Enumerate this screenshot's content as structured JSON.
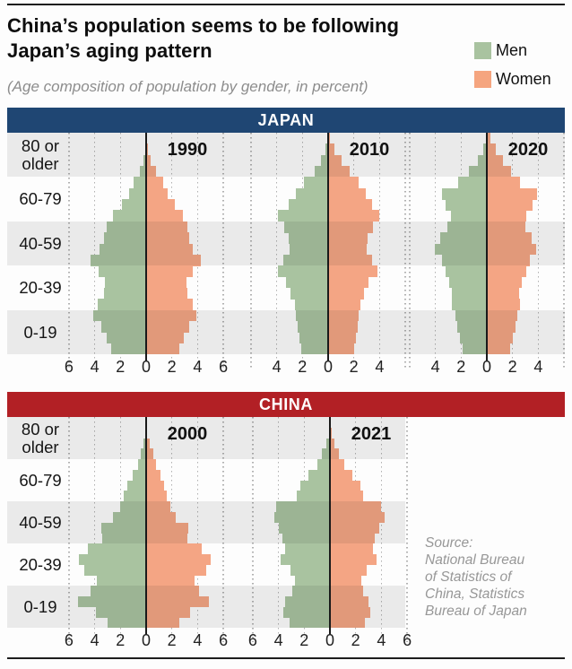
{
  "title": {
    "line1": "China’s population seems to be following",
    "line2": "Japan’s aging pattern"
  },
  "subtitle": "(Age composition of population by gender, in percent)",
  "legend": {
    "men": {
      "label": "Men",
      "color": "#a9c3a0"
    },
    "women": {
      "label": "Women",
      "color": "#f5a57f"
    }
  },
  "source_lines": [
    "Source:",
    "National Bureau",
    "of Statistics of",
    "China, Statistics",
    "Bureau of Japan"
  ],
  "colors": {
    "men_bar": "#a9c3a0",
    "women_bar": "#f4a584",
    "band_stripe": "#ececec",
    "gridline": "#b0b0b0",
    "zero_axis": "#1b1b1b",
    "japan_header": "#1f4673",
    "china_header": "#b22025"
  },
  "chart_data": {
    "type": "bar",
    "subtype": "population-pyramid",
    "unit": "percent of total population per gender, 5-year age groups",
    "age_band_labels": [
      "80 or older",
      "60-79",
      "40-59",
      "20-39",
      "0-19"
    ],
    "age_groups_order": "oldest_to_youngest",
    "age_groups": [
      "95+",
      "90-94",
      "85-89",
      "80-84",
      "75-79",
      "70-74",
      "65-69",
      "60-64",
      "55-59",
      "50-54",
      "45-49",
      "40-44",
      "35-39",
      "30-34",
      "25-29",
      "20-24",
      "15-19",
      "10-14",
      "5-9",
      "0-4"
    ],
    "xlim_units": 6,
    "panels": [
      {
        "title": "JAPAN",
        "header_color": "#1f4673",
        "pyramids": [
          {
            "year": "1990",
            "x_tick_labels": [
              "6",
              "4",
              "2",
              "0",
              "2",
              "4",
              "6"
            ],
            "men": [
              0.02,
              0.08,
              0.22,
              0.5,
              0.95,
              1.3,
              1.9,
              2.6,
              3.1,
              3.3,
              3.6,
              4.35,
              3.7,
              3.2,
              3.3,
              3.75,
              4.1,
              3.5,
              3.1,
              2.7
            ],
            "women": [
              0.05,
              0.15,
              0.38,
              0.75,
              1.3,
              1.65,
              2.2,
              2.85,
              3.2,
              3.35,
              3.6,
              4.25,
              3.65,
              3.15,
              3.2,
              3.6,
              3.9,
              3.35,
              2.95,
              2.55
            ]
          },
          {
            "year": "2010",
            "x_tick_labels": [
              "4",
              "2",
              "0",
              "2",
              "4"
            ],
            "men": [
              0.05,
              0.2,
              0.55,
              1.05,
              1.85,
              2.5,
              3.1,
              3.9,
              3.4,
              3.05,
              3.0,
              3.45,
              3.9,
              3.25,
              2.9,
              2.6,
              2.5,
              2.4,
              2.25,
              2.1
            ],
            "women": [
              0.15,
              0.5,
              1.05,
              1.65,
              2.4,
              2.95,
              3.4,
              4.0,
              3.5,
              3.1,
              3.0,
              3.4,
              3.8,
              3.15,
              2.8,
              2.5,
              2.35,
              2.3,
              2.15,
              2.0
            ]
          },
          {
            "year": "2020",
            "x_tick_labels": [
              "4",
              "2",
              "0",
              "2",
              "4"
            ],
            "men": [
              0.05,
              0.25,
              0.7,
              1.4,
              2.2,
              3.5,
              3.2,
              2.8,
              3.05,
              3.6,
              4.05,
              3.45,
              3.2,
              2.9,
              2.7,
              2.75,
              2.45,
              2.3,
              2.1,
              1.9
            ],
            "women": [
              0.3,
              0.7,
              1.25,
              1.9,
              2.6,
              3.9,
              3.55,
              3.05,
              3.0,
              3.5,
              3.8,
              3.35,
              3.05,
              2.7,
              2.5,
              2.6,
              2.35,
              2.2,
              2.0,
              1.8
            ]
          }
        ]
      },
      {
        "title": "CHINA",
        "header_color": "#b22025",
        "pyramids": [
          {
            "year": "2000",
            "x_tick_labels": [
              "6",
              "4",
              "2",
              "0",
              "2",
              "4",
              "6"
            ],
            "men": [
              0.01,
              0.06,
              0.2,
              0.45,
              0.65,
              1.05,
              1.45,
              1.75,
              2.05,
              2.55,
              3.5,
              3.4,
              4.5,
              5.2,
              4.8,
              3.85,
              4.3,
              5.3,
              3.9,
              3.0
            ],
            "women": [
              0.02,
              0.1,
              0.3,
              0.55,
              0.75,
              1.1,
              1.4,
              1.6,
              1.85,
              2.3,
              3.3,
              3.2,
              4.3,
              5.0,
              4.7,
              3.75,
              4.1,
              4.9,
              3.4,
              2.55
            ]
          },
          {
            "year": "2021",
            "x_tick_labels": [
              "6",
              "4",
              "2",
              "0",
              "2",
              "4",
              "6"
            ],
            "men": [
              0.02,
              0.08,
              0.25,
              0.6,
              1.0,
              1.65,
              2.3,
              2.6,
              4.15,
              4.35,
              4.0,
              3.7,
              3.5,
              3.8,
              3.1,
              2.75,
              2.95,
              3.5,
              3.65,
              3.15
            ],
            "women": [
              0.04,
              0.12,
              0.35,
              0.7,
              1.1,
              1.75,
              2.35,
              2.55,
              4.0,
              4.25,
              3.85,
              3.5,
              3.35,
              3.6,
              2.85,
              2.45,
              2.55,
              3.0,
              3.15,
              2.7
            ]
          }
        ]
      }
    ]
  }
}
